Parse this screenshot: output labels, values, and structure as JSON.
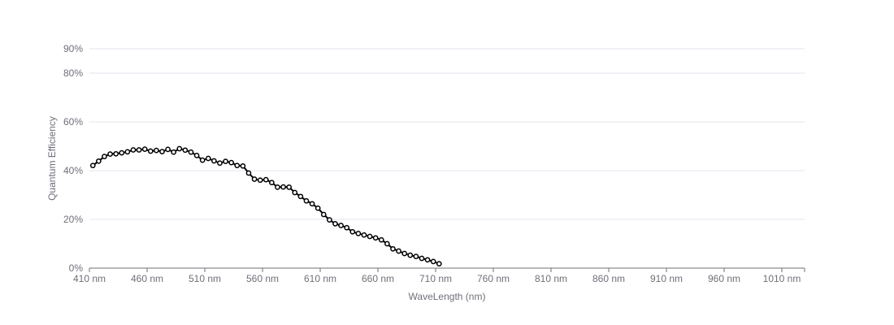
{
  "chart_data": {
    "type": "line",
    "title": "",
    "xlabel": "WaveLength (nm)",
    "ylabel": "Quantum Efficiency",
    "xlim": [
      410,
      1016
    ],
    "ylim": [
      0,
      90
    ],
    "x_ticks": [
      410,
      460,
      510,
      560,
      610,
      660,
      710,
      760,
      810,
      860,
      910,
      960,
      1010
    ],
    "x_tick_labels": [
      "410 nm",
      "460 nm",
      "510 nm",
      "560 nm",
      "610 nm",
      "660 nm",
      "710 nm",
      "760 nm",
      "810 nm",
      "860 nm",
      "910 nm",
      "960 nm",
      "1010 nm"
    ],
    "y_ticks": [
      0,
      20,
      40,
      60,
      80,
      90
    ],
    "y_tick_labels": [
      "0%",
      "20%",
      "40%",
      "60%",
      "80%",
      "90%"
    ],
    "grid": true,
    "legend": "none",
    "colors": {
      "line": "#000000",
      "marker_fill": "#ffffff",
      "grid": "#e0e6f1",
      "axis": "#6e7079",
      "text": "#6e7079"
    },
    "series": [
      {
        "x": [
          413,
          418,
          423,
          428,
          433,
          438,
          443,
          448,
          453,
          458,
          463,
          468,
          473,
          478,
          483,
          488,
          493,
          498,
          503,
          508,
          513,
          518,
          523,
          528,
          533,
          538,
          543,
          548,
          553,
          558,
          563,
          568,
          573,
          578,
          583,
          588,
          593,
          598,
          603,
          608,
          613,
          618,
          623,
          628,
          633,
          638,
          643,
          648,
          653,
          658,
          663,
          668,
          673,
          678,
          683,
          688,
          693,
          698,
          703,
          708,
          713
        ],
        "values": [
          42.1,
          43.9,
          45.8,
          46.8,
          46.9,
          47.3,
          47.7,
          48.5,
          48.5,
          48.8,
          48.0,
          48.3,
          47.8,
          48.7,
          47.6,
          49.0,
          48.4,
          47.6,
          46.2,
          44.3,
          45.0,
          44.0,
          43.1,
          43.8,
          43.3,
          42.1,
          41.9,
          39.0,
          36.5,
          36.1,
          36.3,
          35.1,
          33.2,
          33.3,
          33.2,
          31.0,
          29.4,
          27.6,
          26.4,
          24.6,
          22.0,
          19.8,
          18.2,
          17.5,
          16.6,
          14.9,
          14.2,
          13.6,
          13.0,
          12.4,
          11.6,
          10.0,
          7.9,
          7.0,
          6.0,
          5.3,
          4.8,
          4.0,
          3.4,
          2.7,
          1.8
        ]
      }
    ]
  }
}
